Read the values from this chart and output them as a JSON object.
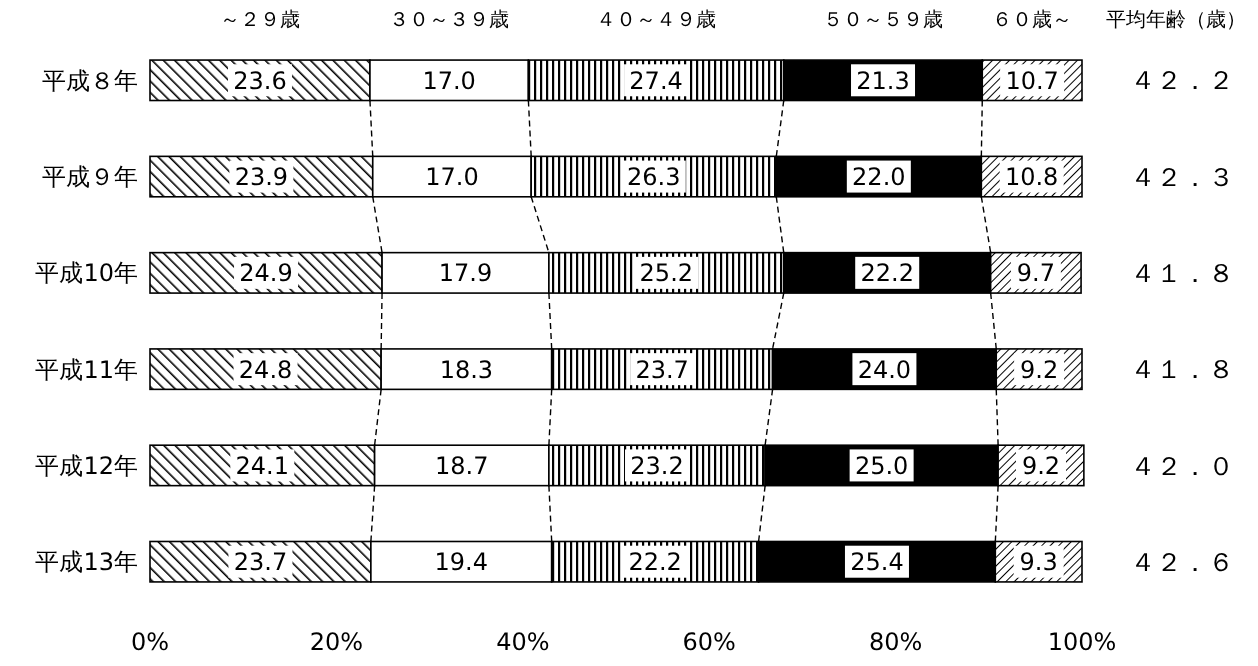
{
  "chart_data": {
    "type": "bar",
    "orientation": "horizontal",
    "stacked": true,
    "categories": [
      "平成８年",
      "平成９年",
      "平成10年",
      "平成11年",
      "平成12年",
      "平成13年"
    ],
    "series": [
      {
        "name": "～２９歳",
        "color": "#000000",
        "values": [
          23.6,
          23.9,
          24.9,
          24.8,
          24.1,
          23.7
        ],
        "value_labels": [
          "23.6",
          "23.9",
          "24.9",
          "24.8",
          "24.1",
          "23.7"
        ]
      },
      {
        "name": "３０～３９歳",
        "color": "#ffffff",
        "values": [
          17.0,
          17.0,
          17.9,
          18.3,
          18.7,
          19.4
        ],
        "value_labels": [
          "17.0",
          "17.0",
          "17.9",
          "18.3",
          "18.7",
          "19.4"
        ]
      },
      {
        "name": "４０～４９歳",
        "color": "#000000",
        "values": [
          27.4,
          26.3,
          25.2,
          23.7,
          23.2,
          22.2
        ],
        "value_labels": [
          "27.4",
          "26.3",
          "25.2",
          "23.7",
          "23.2",
          "22.2"
        ]
      },
      {
        "name": "５０～５９歳",
        "color": "#000000",
        "values": [
          21.3,
          22.0,
          22.2,
          24.0,
          25.0,
          25.4
        ],
        "value_labels": [
          "21.3",
          "22.0",
          "22.2",
          "24.0",
          "25.0",
          "25.4"
        ]
      },
      {
        "name": "６０歳～",
        "color": "#000000",
        "values": [
          10.7,
          10.8,
          9.7,
          9.2,
          9.2,
          9.3
        ],
        "value_labels": [
          "10.7",
          "10.8",
          "9.7",
          "9.2",
          "9.2",
          "9.3"
        ]
      }
    ],
    "xlim": [
      0,
      100
    ],
    "xticks": [
      {
        "value": 0,
        "label": "0%"
      },
      {
        "value": 20,
        "label": "20%"
      },
      {
        "value": 40,
        "label": "40%"
      },
      {
        "value": 60,
        "label": "60%"
      },
      {
        "value": 80,
        "label": "80%"
      },
      {
        "value": 100,
        "label": "100%"
      }
    ],
    "annotations": [
      "平均年齢（歳）",
      "４２．２",
      "４２．３",
      "４１．８",
      "４１．８",
      "４２．０",
      "４２．６"
    ]
  }
}
